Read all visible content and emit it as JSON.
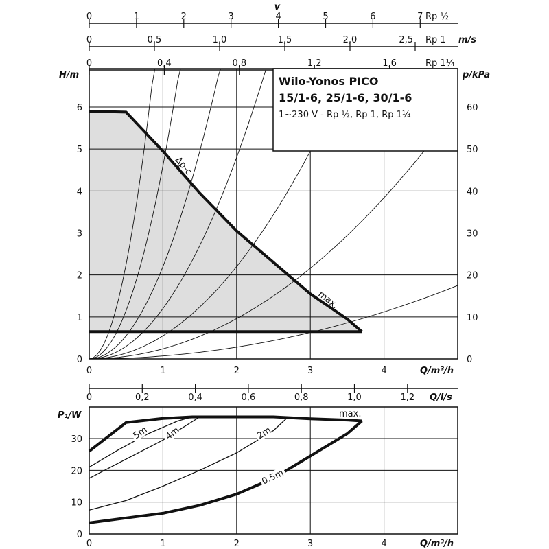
{
  "chart_data": [
    {
      "type": "line",
      "title": "Wilo-Yonos PICO",
      "subtitle": "15/1-6, 25/1-6, 30/1-6",
      "note": "1~230 V - Rp ½, Rp 1, Rp 1¼",
      "xlabel": "Q/m³/h",
      "ylabel": "H/m",
      "y2label": "p/kPa",
      "xlim": [
        0,
        5
      ],
      "ylim": [
        0,
        6.5
      ],
      "y2lim": [
        0,
        65
      ],
      "x_ticks": [
        "0",
        "1",
        "2",
        "3",
        "4"
      ],
      "y_ticks": [
        "0",
        "1",
        "2",
        "3",
        "4",
        "5",
        "6"
      ],
      "y2_ticks": [
        "0",
        "10",
        "20",
        "30",
        "40",
        "50",
        "60"
      ],
      "velocity_label": "v",
      "velocity_scales": [
        {
          "name": "Rp ½",
          "ticks": [
            "0",
            "1",
            "2",
            "3",
            "4",
            "5",
            "6",
            "7"
          ],
          "unit_label": "Rp ½"
        },
        {
          "name": "Rp 1",
          "ticks": [
            "0",
            "0,5",
            "1,0",
            "1,5",
            "2,0",
            "2,5"
          ],
          "unit_label": "Rp 1",
          "axis_unit": "m/s"
        },
        {
          "name": "Rp 1¼",
          "ticks": [
            "0",
            "0,4",
            "0,8",
            "1,2",
            "1,6"
          ],
          "unit_label": "Rp 1¼"
        }
      ],
      "annotations": [
        "Δp-c",
        "max."
      ],
      "series": [
        {
          "name": "max.",
          "x": [
            0,
            0.5,
            1.0,
            1.5,
            2.0,
            2.5,
            3.0,
            3.5,
            3.7
          ],
          "y": [
            5.9,
            5.88,
            4.95,
            3.95,
            3.05,
            2.3,
            1.55,
            0.95,
            0.65
          ]
        },
        {
          "x": [
            0,
            3.7
          ],
          "y": [
            0.65,
            0.65
          ]
        }
      ],
      "system_curves_k": [
        9.0,
        4.6,
        2.2,
        1.2,
        0.55,
        0.24,
        0.07
      ]
    },
    {
      "type": "line",
      "xlabel": "Q/m³/h",
      "ylabel": "P₁/W",
      "xlim": [
        0,
        5
      ],
      "ylim": [
        0,
        40
      ],
      "x_ticks": [
        "0",
        "1",
        "2",
        "3",
        "4"
      ],
      "y_ticks": [
        "0",
        "10",
        "20",
        "30"
      ],
      "x2label": "Q/l/s",
      "x2_ticks": [
        "0",
        "0,2",
        "0,4",
        "0,6",
        "0,8",
        "1,0",
        "1,2"
      ],
      "series": [
        {
          "name": "max.",
          "x": [
            0,
            0.5,
            1.0,
            1.4,
            2.0,
            2.5,
            3.0,
            3.5,
            3.7
          ],
          "y": [
            26,
            35,
            36.3,
            36.8,
            36.8,
            36.8,
            36.2,
            35.8,
            35.5
          ]
        },
        {
          "name": "5m",
          "x": [
            0,
            0.4,
            0.8,
            1.2,
            1.4
          ],
          "y": [
            21,
            26.5,
            31.5,
            35.5,
            36.8
          ]
        },
        {
          "name": "4m",
          "x": [
            0,
            0.5,
            1.0,
            1.5
          ],
          "y": [
            17.5,
            23.5,
            29.5,
            36.8
          ]
        },
        {
          "name": "2m",
          "x": [
            0,
            0.5,
            1.0,
            1.5,
            2.0,
            2.5,
            2.7
          ],
          "y": [
            7.5,
            10.5,
            15,
            20,
            25.5,
            32.5,
            36.8
          ]
        },
        {
          "name": "0,5m",
          "x": [
            0,
            0.5,
            1.0,
            1.5,
            2.0,
            2.5,
            3.0,
            3.5,
            3.7
          ],
          "y": [
            3.5,
            5,
            6.5,
            9,
            12.5,
            17.5,
            24.5,
            31.5,
            35.5
          ]
        }
      ]
    }
  ]
}
